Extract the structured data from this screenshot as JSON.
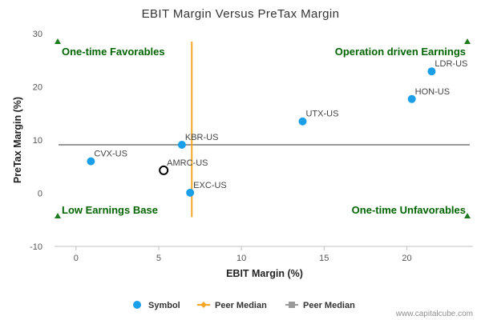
{
  "chart_data": {
    "type": "scatter",
    "title": "EBIT Margin Versus PreTax Margin",
    "xlabel": "EBIT Margin (%)",
    "ylabel": "PreTax Margin (%)",
    "xlim": [
      -1.3,
      24
    ],
    "ylim": [
      -10,
      30
    ],
    "xticks": [
      0,
      5,
      10,
      15,
      20
    ],
    "yticks": [
      -10,
      0,
      10,
      20,
      30
    ],
    "grid": false,
    "points": [
      {
        "label": "LDR-US",
        "x": 21.5,
        "y": 22.9
      },
      {
        "label": "HON-US",
        "x": 20.3,
        "y": 17.7
      },
      {
        "label": "UTX-US",
        "x": 13.7,
        "y": 13.5
      },
      {
        "label": "KBR-US",
        "x": 6.4,
        "y": 9.1
      },
      {
        "label": "CVX-US",
        "x": 0.9,
        "y": 6.0
      },
      {
        "label": "AMRC-US",
        "x": 5.3,
        "y": 4.3,
        "highlight": true
      },
      {
        "label": "EXC-US",
        "x": 6.9,
        "y": 0.1
      }
    ],
    "peer_median_x": 7.0,
    "peer_median_y": 9.1,
    "median_x_span": [
      -4.5,
      28.5
    ],
    "quadrants": [
      {
        "label": "One-time Favorables",
        "corner": "top-left"
      },
      {
        "label": "Operation driven Earnings",
        "corner": "top-right"
      },
      {
        "label": "Low Earnings Base",
        "corner": "bottom-left"
      },
      {
        "label": "One-time Unfavorables",
        "corner": "bottom-right"
      }
    ],
    "legend": {
      "placement": "bottom-center",
      "items": [
        {
          "label": "Symbol",
          "kind": "dot"
        },
        {
          "label": "Peer Median",
          "kind": "orange-line"
        },
        {
          "label": "Peer Median",
          "kind": "gray-line"
        }
      ]
    },
    "colors": {
      "point": "#1a9fe8",
      "highlight_stroke": "#000000",
      "median_vertical": "#f5a623",
      "median_horizontal": "#999999",
      "quadrant_text": "#006400",
      "triangle": "#1e7b1e",
      "axis": "#c0c0c0"
    }
  },
  "credit": "www.capitalcube.com"
}
